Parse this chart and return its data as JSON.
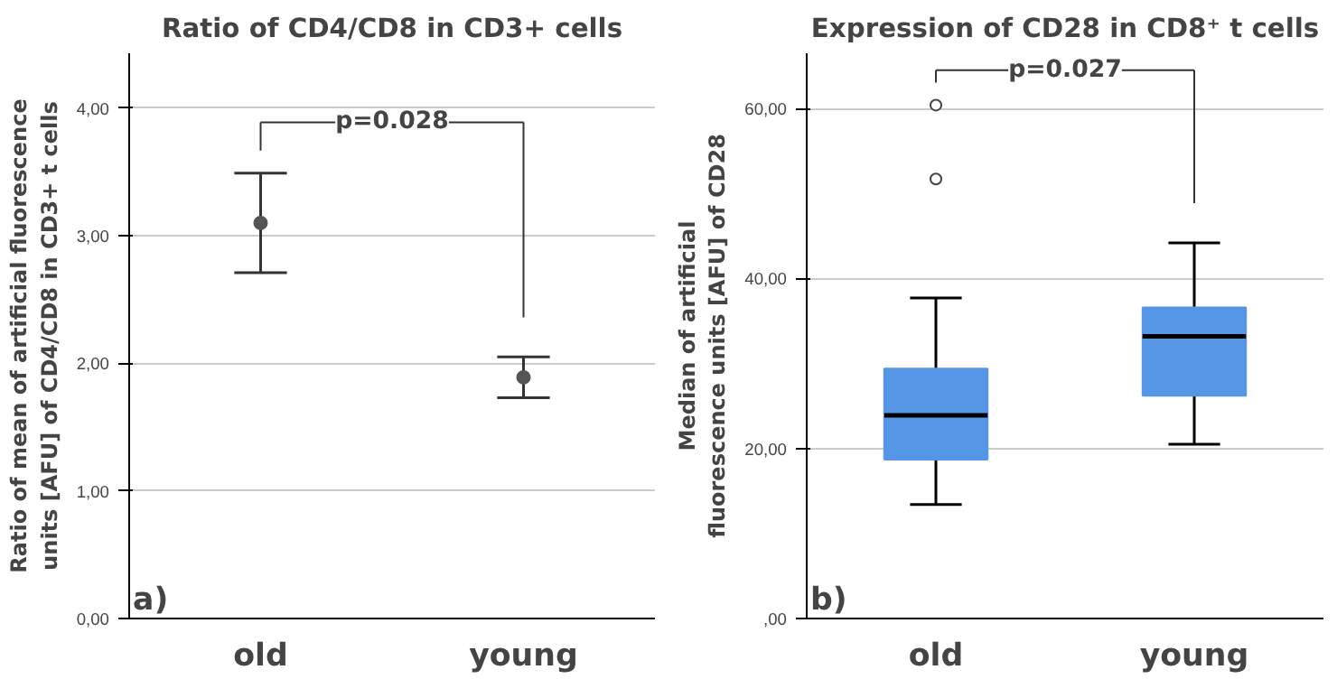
{
  "chart_data": [
    {
      "type": "scatter",
      "title": "Ratio of CD4/CD8 in CD3+ cells",
      "ylabel": "Ratio of mean of artificial fluorescence units [AFU] of CD4/CD8 in CD3+ t cells",
      "categories": [
        "old",
        "young"
      ],
      "series": [
        {
          "color": "#555555",
          "values": [
            3.1,
            1.89
          ],
          "errors": [
            [
              2.71,
              3.49
            ],
            [
              1.73,
              2.05
            ]
          ]
        }
      ],
      "ylim": [
        0,
        4.43
      ],
      "yticks": [
        {
          "value": 0,
          "label": "0,00"
        },
        {
          "value": 1,
          "label": "1,00"
        },
        {
          "value": 2,
          "label": "2,00"
        },
        {
          "value": 3,
          "label": "3,00"
        },
        {
          "value": 4,
          "label": "4,00"
        }
      ],
      "grid": "y",
      "marker": "circle",
      "annotations": [
        "a)",
        "p=0.028"
      ]
    },
    {
      "type": "box",
      "title": "Expression of CD28 in CD8⁺ t cells",
      "ylabel": "Median of artificial fluorescence units [AFU] of CD28",
      "categories": [
        "old",
        "young"
      ],
      "series": [
        {
          "color": "#5596e6",
          "boxes": [
            {
              "low": 13.4,
              "q1": 18.7,
              "median": 23.9,
              "q3": 29.4,
              "high": 37.7,
              "outliers": [
                51.7,
                60.4
              ]
            },
            {
              "low": 20.5,
              "q1": 26.2,
              "median": 33.2,
              "q3": 36.6,
              "high": 44.2
            }
          ]
        }
      ],
      "ylim": [
        0,
        66.5
      ],
      "yticks": [
        {
          "value": 0,
          "label": ",00"
        },
        {
          "value": 20,
          "label": "20,00"
        },
        {
          "value": 40,
          "label": "40,00"
        },
        {
          "value": 60,
          "label": "60,00"
        }
      ],
      "grid": "y",
      "annotations": [
        "b)",
        "p=0.027"
      ]
    }
  ]
}
